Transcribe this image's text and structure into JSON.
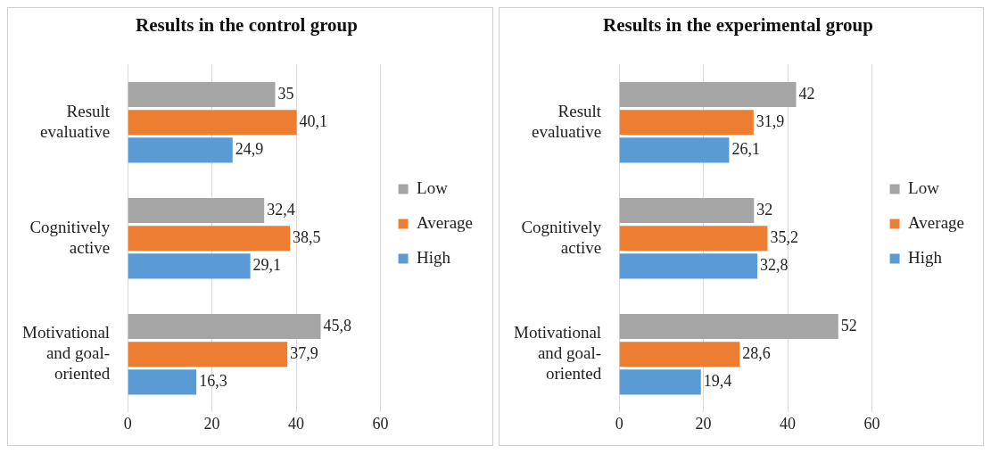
{
  "chart_data": [
    {
      "type": "bar",
      "orientation": "horizontal",
      "title": "Results in the control group",
      "categories": [
        "Result evaluative",
        "Cognitively active",
        "Motivational and goal-oriented"
      ],
      "xlim": [
        0,
        60
      ],
      "xticks": [
        0,
        20,
        40,
        60
      ],
      "grid": "x",
      "legend": "right",
      "series": [
        {
          "name": "Low",
          "color": "#a5a5a5",
          "values": [
            35,
            32.4,
            45.8
          ],
          "value_labels": [
            "35",
            "32,4",
            "45,8"
          ]
        },
        {
          "name": "Average",
          "color": "#ed7d31",
          "values": [
            40.1,
            38.5,
            37.9
          ],
          "value_labels": [
            "40,1",
            "38,5",
            "37,9"
          ]
        },
        {
          "name": "High",
          "color": "#5b9bd5",
          "values": [
            24.9,
            29.1,
            16.3
          ],
          "value_labels": [
            "24,9",
            "29,1",
            "16,3"
          ]
        }
      ]
    },
    {
      "type": "bar",
      "orientation": "horizontal",
      "title": "Results in the experimental group",
      "categories": [
        "Result evaluative",
        "Cognitively active",
        "Motivational and goal-oriented"
      ],
      "xlim": [
        0,
        60
      ],
      "xticks": [
        0,
        20,
        40,
        60
      ],
      "grid": "x",
      "legend": "right",
      "series": [
        {
          "name": "Low",
          "color": "#a5a5a5",
          "values": [
            42,
            32,
            52
          ],
          "value_labels": [
            "42",
            "32",
            "52"
          ]
        },
        {
          "name": "Average",
          "color": "#ed7d31",
          "values": [
            31.9,
            35.2,
            28.6
          ],
          "value_labels": [
            "31,9",
            "35,2",
            "28,6"
          ]
        },
        {
          "name": "High",
          "color": "#5b9bd5",
          "values": [
            26.1,
            32.8,
            19.4
          ],
          "value_labels": [
            "26,1",
            "32,8",
            "19,4"
          ]
        }
      ]
    }
  ]
}
